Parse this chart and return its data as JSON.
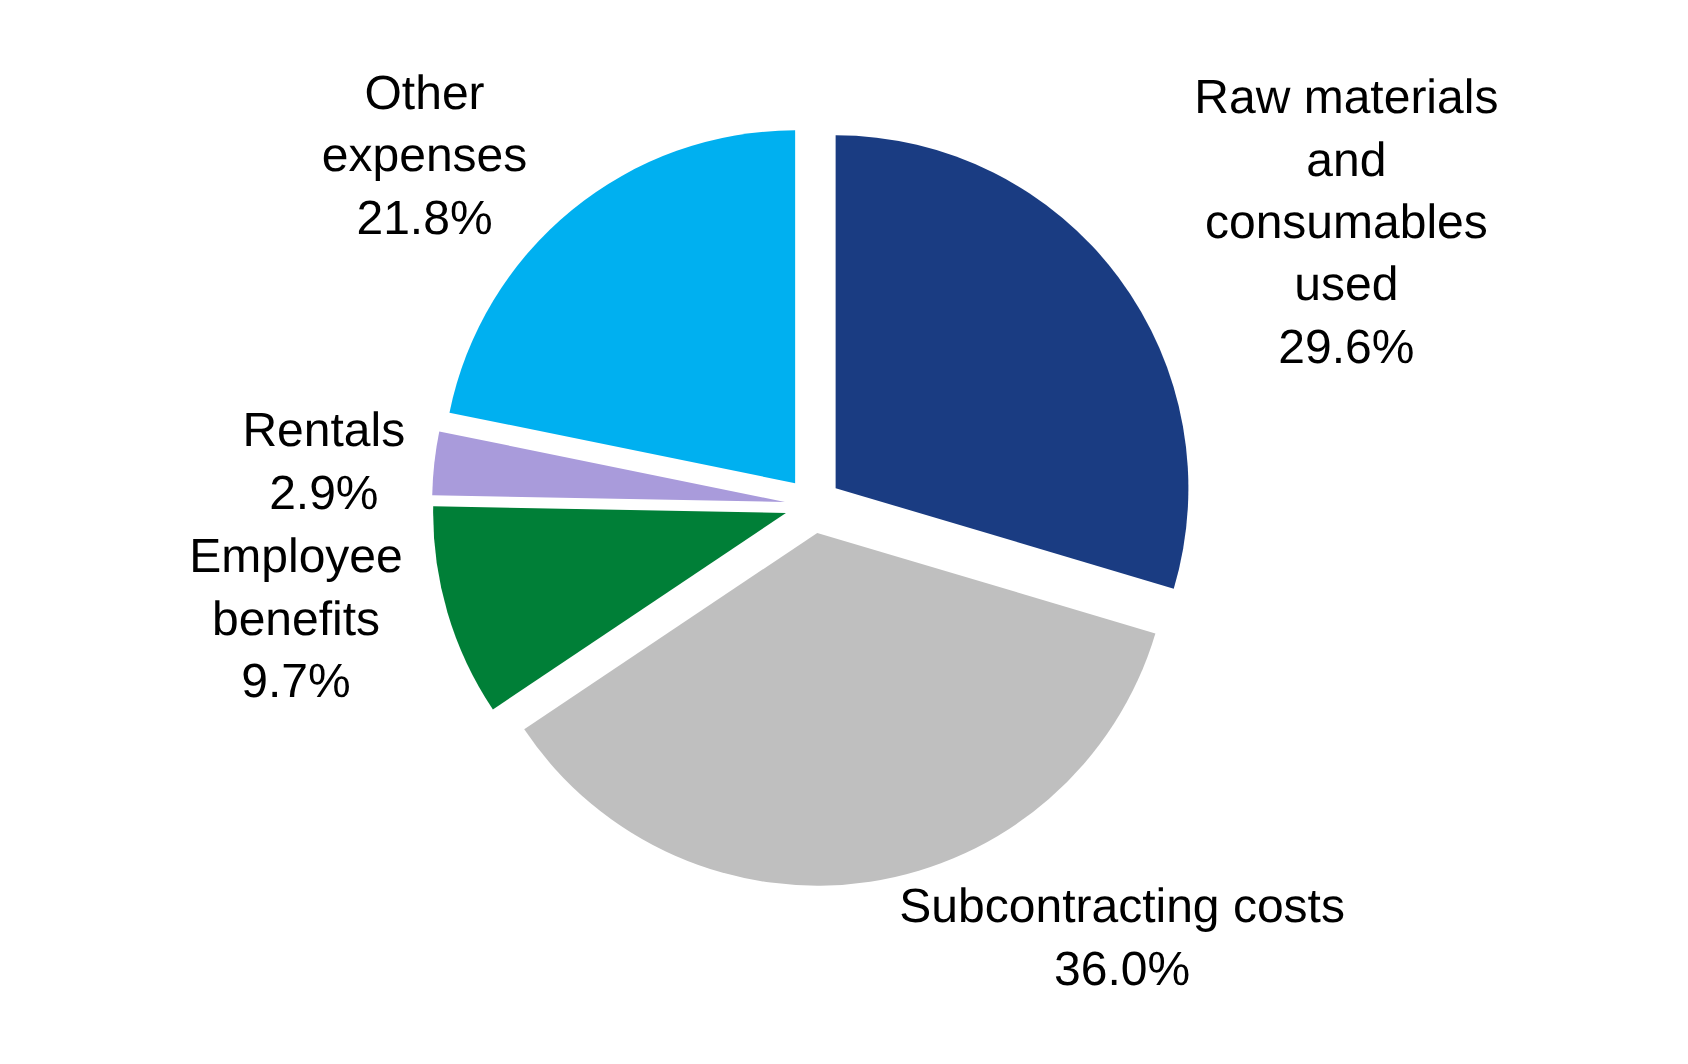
{
  "chart_data": {
    "type": "pie",
    "categories": [
      "Raw materials\nand\nconsumables\nused",
      "Subcontracting costs",
      "Employee\nbenefits",
      "Rentals",
      "Other\nexpenses"
    ],
    "values": [
      29.6,
      36.0,
      9.7,
      2.9,
      21.8
    ],
    "value_labels": [
      "29.6%",
      "36.0%",
      "9.7%",
      "2.9%",
      "21.8%"
    ],
    "colors": [
      "#1a3c82",
      "#bfbfbf",
      "#007f37",
      "#a99bdb",
      "#00b0f0"
    ],
    "legend": false
  }
}
